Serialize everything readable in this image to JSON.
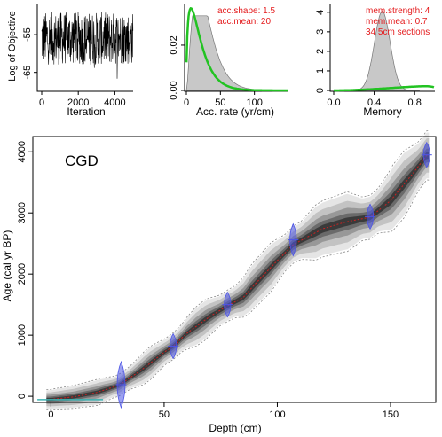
{
  "chart_data": [
    {
      "type": "line",
      "panel": "iteration-trace",
      "xlabel": "Iteration",
      "ylabel": "Log of Objective",
      "x_ticks": [
        0,
        2000,
        4000
      ],
      "y_ticks": [
        -55,
        -65
      ],
      "xlim": [
        0,
        5000
      ],
      "ylim": [
        -70,
        -47
      ],
      "trace_center": -56,
      "trace_color": "#000000"
    },
    {
      "type": "area",
      "panel": "accumulation-rate",
      "xlabel": "Acc. rate (yr/cm)",
      "x_ticks": [
        0,
        50,
        100
      ],
      "y_ticks": [
        0.0,
        0.02
      ],
      "xlim": [
        0,
        150
      ],
      "ylim": [
        0,
        0.038
      ],
      "prior": {
        "shape": 1.5,
        "mean": 20
      },
      "posterior_fill": "#c8c8c8",
      "prior_color": "#22c322",
      "annotations": [
        "acc.shape:  1.5",
        "acc.mean:  20"
      ]
    },
    {
      "type": "area",
      "panel": "memory",
      "xlabel": "Memory",
      "x_ticks": [
        0.0,
        0.4,
        0.8
      ],
      "y_ticks": [
        0,
        1,
        2,
        3,
        4
      ],
      "xlim": [
        0,
        1
      ],
      "ylim": [
        0,
        4.4
      ],
      "prior": {
        "strength": 4,
        "mean": 0.7
      },
      "posterior_fill": "#c8c8c8",
      "prior_color": "#22c322",
      "annotations": [
        "mem.strength: 4",
        "mem.mean: 0.7",
        "34 5cm sections"
      ]
    },
    {
      "type": "area",
      "panel": "age-depth",
      "title": "CGD",
      "xlabel": "Depth (cm)",
      "ylabel": "Age (cal yr BP)",
      "x_ticks": [
        0,
        50,
        100,
        150
      ],
      "y_ticks": [
        0,
        1000,
        2000,
        3000,
        4000
      ],
      "xlim": [
        -8,
        170
      ],
      "ylim": [
        -100,
        4250
      ],
      "model_depths": [
        0,
        10,
        20,
        30,
        40,
        50,
        54,
        60,
        70,
        78,
        85,
        90,
        100,
        107,
        115,
        120,
        130,
        141,
        150,
        160,
        166
      ],
      "model_median_ages": [
        -50,
        -10,
        60,
        180,
        430,
        720,
        820,
        1030,
        1300,
        1480,
        1620,
        1830,
        2220,
        2480,
        2640,
        2740,
        2850,
        2930,
        3200,
        3650,
        3940
      ],
      "dates": [
        {
          "depth": 31,
          "age": 190
        },
        {
          "depth": 54,
          "age": 820
        },
        {
          "depth": 78,
          "age": 1500
        },
        {
          "depth": 107,
          "age": 2560
        },
        {
          "depth": 141,
          "age": 2940
        },
        {
          "depth": 166,
          "age": 3950
        }
      ],
      "surface_line": {
        "depth_from": -6,
        "depth_to": 23,
        "age": -55,
        "color": "#3cb3b3"
      },
      "date_color": "#4d55e6",
      "median_color": "#cc2222"
    }
  ]
}
